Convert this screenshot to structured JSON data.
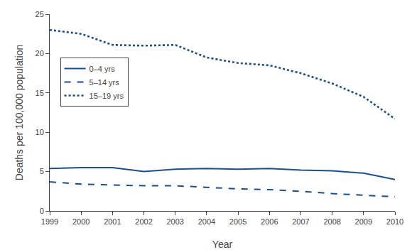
{
  "chart_data": {
    "type": "line",
    "x": [
      1999,
      2000,
      2001,
      2002,
      2003,
      2004,
      2005,
      2006,
      2007,
      2008,
      2009,
      2010
    ],
    "series": [
      {
        "name": "0–4 yrs",
        "color": "#1a4f8a",
        "line_style": "solid",
        "values": [
          5.4,
          5.5,
          5.5,
          5.0,
          5.3,
          5.4,
          5.3,
          5.4,
          5.2,
          5.1,
          4.8,
          4.0
        ]
      },
      {
        "name": "5–14 yrs",
        "color": "#1a4f8a",
        "line_style": "dashed",
        "values": [
          3.7,
          3.4,
          3.3,
          3.2,
          3.2,
          3.0,
          2.8,
          2.7,
          2.5,
          2.2,
          2.0,
          1.8
        ]
      },
      {
        "name": "15–19 yrs",
        "color": "#1a4f8a",
        "line_style": "dotted",
        "values": [
          23.0,
          22.5,
          21.1,
          21.0,
          21.1,
          19.5,
          18.8,
          18.5,
          17.5,
          16.2,
          14.5,
          11.7
        ]
      }
    ],
    "xlabel": "Year",
    "ylabel": "Deaths per 100,000 population",
    "xlim": [
      1999,
      2010
    ],
    "xticks": [
      1999,
      2000,
      2001,
      2002,
      2003,
      2004,
      2005,
      2006,
      2007,
      2008,
      2009,
      2010
    ],
    "ylim": [
      0,
      25
    ],
    "yticks": [
      0,
      5,
      10,
      15,
      20,
      25
    ],
    "grid": false,
    "legend": "upper left"
  }
}
